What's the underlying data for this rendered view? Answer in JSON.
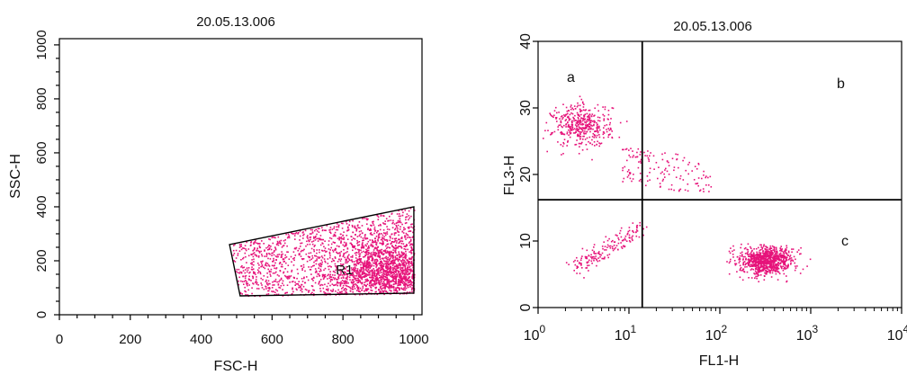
{
  "colors": {
    "dots": "#e6137a",
    "axis": "#000000",
    "background": "#ffffff"
  },
  "chart_data": [
    {
      "type": "scatter",
      "title": "20.05.13.006",
      "xlabel": "FSC-H",
      "ylabel": "SSC-H",
      "xlim": [
        0,
        1023
      ],
      "ylim": [
        0,
        1023
      ],
      "x_ticks": [
        "0",
        "200",
        "400",
        "600",
        "800",
        "1000"
      ],
      "y_ticks": [
        "0",
        "200",
        "400",
        "600",
        "800",
        "1000"
      ],
      "grid": false,
      "gate": {
        "label": "R1",
        "polygon": [
          [
            480,
            260
          ],
          [
            1000,
            400
          ],
          [
            1000,
            80
          ],
          [
            510,
            70
          ]
        ]
      },
      "events": {
        "approx_count": 2600,
        "x_range": [
          480,
          1000
        ],
        "y_range": [
          70,
          400
        ],
        "densest_at": [
          930,
          160
        ]
      }
    },
    {
      "type": "scatter",
      "title": "20.05.13.006",
      "xlabel": "FL1-H",
      "ylabel": "FL3-H",
      "x_scale": "log",
      "xlim": [
        1,
        10000
      ],
      "ylim": [
        0,
        40
      ],
      "x_ticks": [
        "10",
        "10",
        "10",
        "10",
        "10"
      ],
      "x_tick_exponents": [
        "0",
        "1",
        "2",
        "3",
        "4"
      ],
      "y_ticks": [
        "0",
        "10",
        "20",
        "30",
        "40"
      ],
      "grid": false,
      "quadrant_lines": {
        "x": 14,
        "y": 16.2
      },
      "quadrant_labels": [
        "a",
        "b",
        "c"
      ],
      "populations": [
        {
          "quadrant": "a",
          "center": [
            3,
            27.5
          ],
          "spread": [
            1.45,
            1.6
          ],
          "approx_count": 420
        },
        {
          "quadrant": "a-b",
          "x_range": [
            8,
            80
          ],
          "y_range": [
            19,
            24.5
          ],
          "approx_count": 140
        },
        {
          "quadrant": "lower-left",
          "x_range": [
            2.5,
            13
          ],
          "y_range": [
            6,
            12
          ],
          "approx_count": 170
        },
        {
          "quadrant": "c",
          "center": [
            320,
            7.2
          ],
          "spread": [
            1.4,
            1.0
          ],
          "approx_count": 900
        }
      ]
    }
  ]
}
